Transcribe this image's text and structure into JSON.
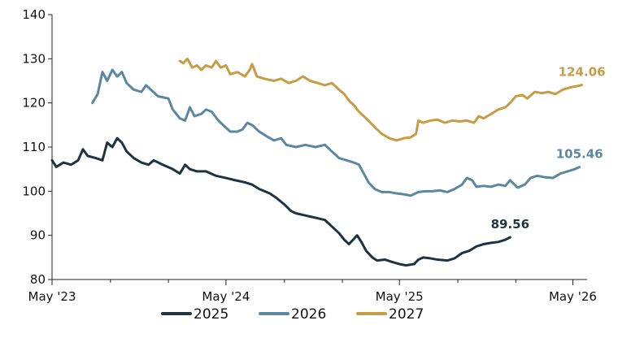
{
  "chart_data": {
    "type": "line",
    "title": "",
    "xlabel": "",
    "ylabel": "",
    "ylim": [
      80,
      140
    ],
    "yticks": [
      80,
      90,
      100,
      110,
      120,
      130,
      140
    ],
    "xlim": [
      "2023-05-01",
      "2026-05-31"
    ],
    "xticks": [
      {
        "date": "2023-05-01",
        "label": "May '23"
      },
      {
        "date": "2024-05-01",
        "label": "May '24"
      },
      {
        "date": "2025-05-01",
        "label": "May '25"
      },
      {
        "date": "2026-05-01",
        "label": "May '26"
      }
    ],
    "minor_xticks": [
      "2023-09-01",
      "2024-01-01",
      "2024-09-01",
      "2025-01-01",
      "2025-09-01",
      "2026-01-01"
    ],
    "grid": false,
    "legend_position": "bottom",
    "series": [
      {
        "name": "2025",
        "color": "#1e3340",
        "end_label": "89.56",
        "points": [
          [
            "2023-05-01",
            107
          ],
          [
            "2023-05-10",
            105.5
          ],
          [
            "2023-05-25",
            106.5
          ],
          [
            "2023-06-10",
            106
          ],
          [
            "2023-06-25",
            107
          ],
          [
            "2023-07-05",
            109.5
          ],
          [
            "2023-07-15",
            108
          ],
          [
            "2023-08-01",
            107.5
          ],
          [
            "2023-08-15",
            107
          ],
          [
            "2023-08-25",
            111
          ],
          [
            "2023-09-05",
            110
          ],
          [
            "2023-09-15",
            112
          ],
          [
            "2023-09-25",
            111
          ],
          [
            "2023-10-05",
            109
          ],
          [
            "2023-10-20",
            107.5
          ],
          [
            "2023-11-05",
            106.5
          ],
          [
            "2023-11-20",
            106
          ],
          [
            "2023-12-01",
            107
          ],
          [
            "2023-12-20",
            106
          ],
          [
            "2024-01-10",
            105
          ],
          [
            "2024-01-25",
            104
          ],
          [
            "2024-02-05",
            106
          ],
          [
            "2024-02-15",
            105
          ],
          [
            "2024-03-01",
            104.5
          ],
          [
            "2024-03-20",
            104.5
          ],
          [
            "2024-04-10",
            103.5
          ],
          [
            "2024-05-01",
            103
          ],
          [
            "2024-05-20",
            102.5
          ],
          [
            "2024-06-10",
            102
          ],
          [
            "2024-06-25",
            101.5
          ],
          [
            "2024-07-10",
            100.5
          ],
          [
            "2024-08-01",
            99.5
          ],
          [
            "2024-08-15",
            98.5
          ],
          [
            "2024-09-01",
            97
          ],
          [
            "2024-09-15",
            95.5
          ],
          [
            "2024-09-25",
            95
          ],
          [
            "2024-10-15",
            94.5
          ],
          [
            "2024-11-05",
            94
          ],
          [
            "2024-11-25",
            93.5
          ],
          [
            "2024-12-10",
            92
          ],
          [
            "2024-12-25",
            90.5
          ],
          [
            "2025-01-05",
            89
          ],
          [
            "2025-01-15",
            88
          ],
          [
            "2025-02-01",
            90
          ],
          [
            "2025-02-10",
            88.5
          ],
          [
            "2025-02-20",
            86.5
          ],
          [
            "2025-03-05",
            85
          ],
          [
            "2025-03-15",
            84.3
          ],
          [
            "2025-04-01",
            84.5
          ],
          [
            "2025-04-15",
            84
          ],
          [
            "2025-05-01",
            83.5
          ],
          [
            "2025-05-15",
            83.2
          ],
          [
            "2025-06-01",
            83.5
          ],
          [
            "2025-06-10",
            84.5
          ],
          [
            "2025-06-20",
            85
          ],
          [
            "2025-07-05",
            84.8
          ],
          [
            "2025-07-20",
            84.5
          ],
          [
            "2025-08-10",
            84.3
          ],
          [
            "2025-08-25",
            84.8
          ],
          [
            "2025-09-10",
            86
          ],
          [
            "2025-09-25",
            86.5
          ],
          [
            "2025-10-10",
            87.5
          ],
          [
            "2025-10-25",
            88
          ],
          [
            "2025-11-10",
            88.3
          ],
          [
            "2025-11-25",
            88.5
          ],
          [
            "2025-12-10",
            89
          ],
          [
            "2025-12-20",
            89.56
          ]
        ]
      },
      {
        "name": "2026",
        "color": "#5b88a0",
        "end_label": "105.46",
        "points": [
          [
            "2023-07-25",
            120
          ],
          [
            "2023-08-05",
            122
          ],
          [
            "2023-08-15",
            127
          ],
          [
            "2023-08-25",
            125
          ],
          [
            "2023-09-05",
            127.5
          ],
          [
            "2023-09-15",
            126
          ],
          [
            "2023-09-25",
            127
          ],
          [
            "2023-10-05",
            124.5
          ],
          [
            "2023-10-20",
            123
          ],
          [
            "2023-11-05",
            122.5
          ],
          [
            "2023-11-15",
            124
          ],
          [
            "2023-11-25",
            123
          ],
          [
            "2023-12-10",
            121.5
          ],
          [
            "2024-01-01",
            121
          ],
          [
            "2024-01-10",
            118.5
          ],
          [
            "2024-01-25",
            116.5
          ],
          [
            "2024-02-05",
            116
          ],
          [
            "2024-02-15",
            119
          ],
          [
            "2024-02-25",
            117
          ],
          [
            "2024-03-10",
            117.5
          ],
          [
            "2024-03-20",
            118.5
          ],
          [
            "2024-04-01",
            118
          ],
          [
            "2024-04-15",
            116
          ],
          [
            "2024-04-25",
            115
          ],
          [
            "2024-05-10",
            113.5
          ],
          [
            "2024-05-25",
            113.5
          ],
          [
            "2024-06-05",
            114
          ],
          [
            "2024-06-15",
            115.5
          ],
          [
            "2024-06-25",
            115
          ],
          [
            "2024-07-10",
            113.5
          ],
          [
            "2024-07-25",
            112.5
          ],
          [
            "2024-08-10",
            111.5
          ],
          [
            "2024-08-25",
            112
          ],
          [
            "2024-09-05",
            110.5
          ],
          [
            "2024-09-25",
            110
          ],
          [
            "2024-10-15",
            110.5
          ],
          [
            "2024-11-05",
            110
          ],
          [
            "2024-11-25",
            110.5
          ],
          [
            "2024-12-10",
            109
          ],
          [
            "2024-12-25",
            107.5
          ],
          [
            "2025-01-10",
            107
          ],
          [
            "2025-01-25",
            106.5
          ],
          [
            "2025-02-05",
            106
          ],
          [
            "2025-02-15",
            104
          ],
          [
            "2025-02-25",
            102
          ],
          [
            "2025-03-10",
            100.5
          ],
          [
            "2025-03-25",
            99.8
          ],
          [
            "2025-04-10",
            99.8
          ],
          [
            "2025-04-25",
            99.5
          ],
          [
            "2025-05-10",
            99.3
          ],
          [
            "2025-05-25",
            99
          ],
          [
            "2025-06-10",
            99.8
          ],
          [
            "2025-06-25",
            100
          ],
          [
            "2025-07-10",
            100
          ],
          [
            "2025-07-25",
            100.2
          ],
          [
            "2025-08-10",
            99.8
          ],
          [
            "2025-08-25",
            100.5
          ],
          [
            "2025-09-10",
            101.5
          ],
          [
            "2025-09-20",
            103
          ],
          [
            "2025-10-01",
            102.5
          ],
          [
            "2025-10-10",
            101
          ],
          [
            "2025-10-25",
            101.2
          ],
          [
            "2025-11-10",
            101
          ],
          [
            "2025-11-25",
            101.5
          ],
          [
            "2025-12-10",
            101.2
          ],
          [
            "2025-12-20",
            102.5
          ],
          [
            "2026-01-05",
            100.8
          ],
          [
            "2026-01-20",
            101.5
          ],
          [
            "2026-02-01",
            103
          ],
          [
            "2026-02-15",
            103.5
          ],
          [
            "2026-03-01",
            103.2
          ],
          [
            "2026-03-20",
            103
          ],
          [
            "2026-04-05",
            104
          ],
          [
            "2026-04-20",
            104.5
          ],
          [
            "2026-05-05",
            105
          ],
          [
            "2026-05-15",
            105.46
          ]
        ]
      },
      {
        "name": "2027",
        "color": "#c89b45",
        "end_label": "124.06",
        "points": [
          [
            "2024-01-25",
            129.5
          ],
          [
            "2024-02-01",
            129
          ],
          [
            "2024-02-10",
            130
          ],
          [
            "2024-02-20",
            128
          ],
          [
            "2024-03-01",
            128.5
          ],
          [
            "2024-03-10",
            127.5
          ],
          [
            "2024-03-20",
            128.5
          ],
          [
            "2024-04-01",
            128
          ],
          [
            "2024-04-10",
            129.5
          ],
          [
            "2024-04-20",
            128
          ],
          [
            "2024-05-01",
            128.5
          ],
          [
            "2024-05-10",
            126.5
          ],
          [
            "2024-05-25",
            127
          ],
          [
            "2024-06-10",
            126
          ],
          [
            "2024-06-20",
            127.5
          ],
          [
            "2024-06-25",
            128.8
          ],
          [
            "2024-07-05",
            126
          ],
          [
            "2024-07-20",
            125.5
          ],
          [
            "2024-08-10",
            125
          ],
          [
            "2024-08-25",
            125.5
          ],
          [
            "2024-09-10",
            124.5
          ],
          [
            "2024-09-25",
            125
          ],
          [
            "2024-10-10",
            126
          ],
          [
            "2024-10-25",
            125
          ],
          [
            "2024-11-10",
            124.5
          ],
          [
            "2024-11-25",
            124
          ],
          [
            "2024-12-10",
            124.5
          ],
          [
            "2024-12-25",
            123
          ],
          [
            "2025-01-05",
            122
          ],
          [
            "2025-01-15",
            120.5
          ],
          [
            "2025-01-25",
            119.5
          ],
          [
            "2025-02-05",
            118
          ],
          [
            "2025-02-15",
            117
          ],
          [
            "2025-02-25",
            116
          ],
          [
            "2025-03-10",
            114.5
          ],
          [
            "2025-03-25",
            113
          ],
          [
            "2025-04-10",
            112
          ],
          [
            "2025-04-25",
            111.5
          ],
          [
            "2025-05-10",
            112
          ],
          [
            "2025-05-25",
            112.2
          ],
          [
            "2025-06-05",
            113
          ],
          [
            "2025-06-10",
            116
          ],
          [
            "2025-06-20",
            115.5
          ],
          [
            "2025-07-05",
            116
          ],
          [
            "2025-07-20",
            116.2
          ],
          [
            "2025-08-05",
            115.5
          ],
          [
            "2025-08-20",
            116
          ],
          [
            "2025-09-05",
            115.8
          ],
          [
            "2025-09-20",
            116
          ],
          [
            "2025-10-05",
            115.5
          ],
          [
            "2025-10-15",
            117
          ],
          [
            "2025-10-25",
            116.5
          ],
          [
            "2025-11-10",
            117.5
          ],
          [
            "2025-11-25",
            118.5
          ],
          [
            "2025-12-10",
            119
          ],
          [
            "2025-12-20",
            120
          ],
          [
            "2026-01-01",
            121.5
          ],
          [
            "2026-01-15",
            121.8
          ],
          [
            "2026-01-25",
            121
          ],
          [
            "2026-02-10",
            122.5
          ],
          [
            "2026-02-25",
            122.2
          ],
          [
            "2026-03-10",
            122.5
          ],
          [
            "2026-03-25",
            122
          ],
          [
            "2026-04-10",
            123
          ],
          [
            "2026-04-25",
            123.5
          ],
          [
            "2026-05-10",
            123.8
          ],
          [
            "2026-05-20",
            124.06
          ]
        ]
      }
    ]
  }
}
